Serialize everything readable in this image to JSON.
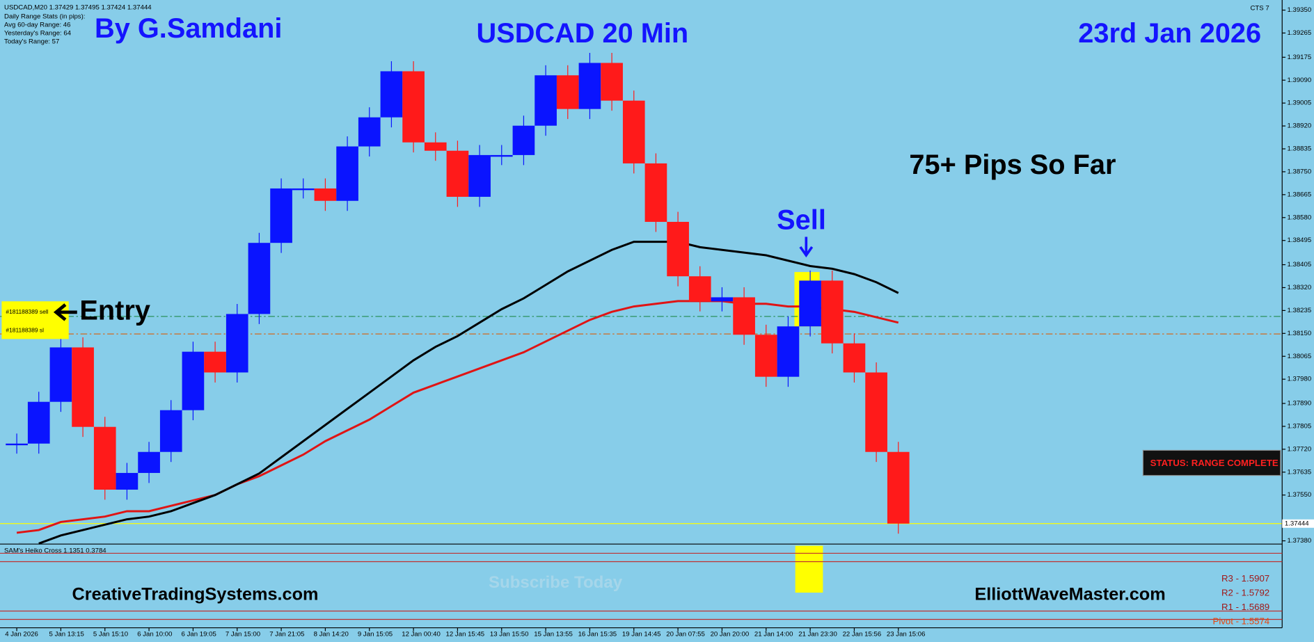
{
  "header": {
    "symbol_line": "USDCAD,M20  1.37429 1.37495 1.37424 1.37444",
    "stats_title": "Daily Range Stats (in pips):",
    "stats": [
      "Avg 60-day Range: 46",
      "Yesterday's Range: 64",
      "Today's Range: 57"
    ],
    "badge": "CTS 7"
  },
  "chart_data": {
    "type": "heikin-ashi",
    "title": "USDCAD 20 Min",
    "author": "By G.Samdani",
    "date": "23rd Jan 2026",
    "categories": [
      "4 Jan 2026",
      null,
      "5 Jan 13:15",
      null,
      "5 Jan 15:10",
      null,
      "6 Jan 10:00",
      null,
      "6 Jan 19:05",
      null,
      "7 Jan 15:00",
      null,
      "7 Jan 21:05",
      null,
      "8 Jan 14:20",
      null,
      "9 Jan 15:05",
      null,
      "12 Jan 00:40",
      null,
      "12 Jan 15:45",
      null,
      "13 Jan 15:50",
      null,
      "15 Jan 13:55",
      null,
      "16 Jan 15:35",
      null,
      "19 Jan 14:45",
      null,
      "20 Jan 07:55",
      null,
      "20 Jan 20:00",
      null,
      "21 Jan 14:00",
      null,
      "21 Jan 23:30",
      null,
      "22 Jan 15:56",
      null,
      "23 Jan 15:06"
    ],
    "series": [
      {
        "up_color": "#0a14ff",
        "down_color": "#ff1a1a",
        "values": [
          1.37741,
          1.37896,
          1.38098,
          1.37803,
          1.3757,
          1.37632,
          1.3771,
          1.37865,
          1.38082,
          1.38005,
          1.38222,
          1.38486,
          1.38688,
          1.38688,
          1.38642,
          1.38844,
          1.38952,
          1.39123,
          1.38859,
          1.38828,
          1.38657,
          1.38812,
          1.38812,
          1.38921,
          1.39108,
          1.38983,
          1.39154,
          1.39014,
          1.38781,
          1.38564,
          1.38362,
          1.38269,
          1.38284,
          1.38145,
          1.37989,
          1.38176,
          1.38346,
          1.38113,
          1.38005,
          1.3771,
          1.37444
        ]
      },
      {
        "color": "#e01414",
        "values": [
          1.3741,
          1.3742,
          1.3745,
          1.3746,
          1.3747,
          1.3749,
          1.3749,
          1.3751,
          1.3753,
          1.3755,
          1.3759,
          1.3762,
          1.3766,
          1.377,
          1.3775,
          1.3779,
          1.3783,
          1.3788,
          1.3793,
          1.3796,
          1.3799,
          1.3802,
          1.3805,
          1.3808,
          1.3812,
          1.3816,
          1.382,
          1.3823,
          1.3825,
          1.3826,
          1.3827,
          1.3827,
          1.3827,
          1.3826,
          1.3826,
          1.3825,
          1.3825,
          1.3824,
          1.3823,
          1.3821,
          1.3819
        ]
      },
      {
        "color": "#000000",
        "values": [
          null,
          1.3737,
          1.374,
          1.3742,
          1.3744,
          1.3746,
          1.3747,
          1.3749,
          1.3752,
          1.3755,
          1.3759,
          1.3763,
          1.3769,
          1.3775,
          1.3781,
          1.3787,
          1.3793,
          1.3799,
          1.3805,
          1.381,
          1.3814,
          1.3819,
          1.3824,
          1.3828,
          1.3833,
          1.3838,
          1.3842,
          1.3846,
          1.3849,
          1.3849,
          1.3849,
          1.3847,
          1.3846,
          1.3845,
          1.3844,
          1.3842,
          1.384,
          1.3839,
          1.3837,
          1.3834,
          1.383
        ]
      }
    ],
    "ylim": [
      1.37368,
      1.39372
    ],
    "yticks": [
      {
        "value": 1.3935,
        "label": "1.39350"
      },
      1.39265,
      1.39175,
      {
        "value": 1.3909,
        "label": "1.39090"
      },
      1.39005,
      {
        "value": 1.3892,
        "label": "1.38920"
      },
      1.38835,
      {
        "value": 1.3875,
        "label": "1.38750"
      },
      1.38665,
      {
        "value": 1.3858,
        "label": "1.38580"
      },
      1.38495,
      1.38405,
      {
        "value": 1.3832,
        "label": "1.38320"
      },
      1.38235,
      {
        "value": 1.3815,
        "label": "1.38150"
      },
      1.38065,
      {
        "value": 1.3798,
        "label": "1.37980"
      },
      {
        "value": 1.3789,
        "label": "1.37890"
      },
      1.37805,
      {
        "value": 1.3772,
        "label": "1.37720"
      },
      1.37635,
      {
        "value": 1.3755,
        "label": "1.37550"
      },
      {
        "value": 1.3738,
        "label": "1.37380"
      }
    ],
    "current_price": {
      "value": 1.37444,
      "color": "#ffff00"
    },
    "levels": [
      {
        "value": 1.38213,
        "label": "#181188389 sell",
        "color": "#1f8a4c"
      },
      {
        "value": 1.38148,
        "label": "#181188389 sl",
        "color": "#d2691e"
      }
    ],
    "annotations": {
      "pips": "75+ Pips So Far",
      "sell": "Sell",
      "entry": "Entry"
    },
    "status": "STATUS: RANGE COMPLETE",
    "indicator": "SAM's Heiko Cross 1.1351 0.3784",
    "pivots": [
      "R3 - 1.5907",
      "R2 - 1.5792",
      "R1 - 1.5689",
      "Pivot - 1.5574"
    ]
  },
  "footer": {
    "left": "CreativeTradingSystems.com",
    "right": "ElliottWaveMaster.com",
    "watermark": "Subscribe Today"
  }
}
